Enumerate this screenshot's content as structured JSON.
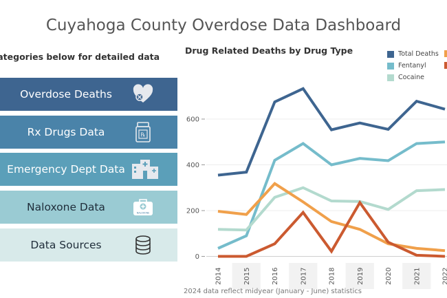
{
  "header": {
    "title": "Cuyahoga County Overdose Data Dashboard"
  },
  "sidebar": {
    "subheading": "e categories below for detailed data",
    "items": [
      {
        "label": "Overdose Deaths",
        "icon": "heart-pill-icon",
        "bg": "#3e6590",
        "fg": "#ffffff"
      },
      {
        "label": "Rx Drugs Data",
        "icon": "pill-bottle-icon",
        "bg": "#4a83a9",
        "fg": "#ffffff"
      },
      {
        "label": "Emergency Dept Data",
        "icon": "hospital-icon",
        "bg": "#5b9fb9",
        "fg": "#ffffff"
      },
      {
        "label": "Naloxone Data",
        "icon": "naloxone-kit-icon",
        "bg": "#9acbd3",
        "fg": "#1f2d3a",
        "icon_text": "NALOXONE"
      },
      {
        "label": "Data Sources",
        "icon": "database-icon",
        "bg": "#d8eaea",
        "fg": "#1f2d3a"
      }
    ]
  },
  "footnote": "2024 data reflect midyear (January - June) statistics",
  "chart_data": {
    "type": "line",
    "title": "Drug Related Deaths by Drug Type",
    "x": [
      "2014",
      "2015",
      "2016",
      "2017",
      "2018",
      "2019",
      "2020",
      "2021",
      "2022"
    ],
    "ylim": [
      0,
      780
    ],
    "yticks": [
      "0",
      "200",
      "400",
      "600"
    ],
    "grid": true,
    "legend_position": "top-right",
    "series": [
      {
        "name": "Total Deaths",
        "color": "#3e6590",
        "values": [
          355,
          368,
          675,
          733,
          553,
          583,
          555,
          678,
          643
        ]
      },
      {
        "name": "Fentanyl",
        "color": "#75bccb",
        "values": [
          35,
          90,
          420,
          493,
          400,
          428,
          418,
          493,
          500
        ]
      },
      {
        "name": "Cocaine",
        "color": "#b3dace",
        "values": [
          118,
          115,
          258,
          300,
          242,
          240,
          205,
          287,
          292
        ]
      },
      {
        "name": "",
        "color": "#f0a04b",
        "values": [
          197,
          183,
          318,
          238,
          152,
          118,
          55,
          35,
          25
        ]
      },
      {
        "name": "",
        "color": "#cb5a30",
        "values": [
          0,
          0,
          55,
          192,
          22,
          235,
          62,
          5,
          0
        ]
      }
    ]
  }
}
